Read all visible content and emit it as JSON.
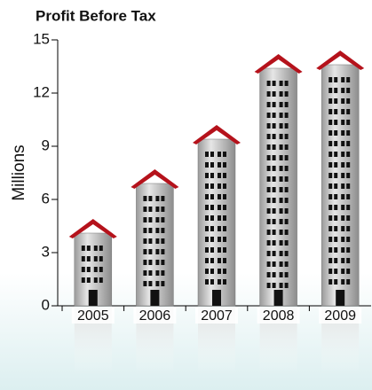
{
  "chart_data": {
    "type": "bar",
    "title": "Profit Before Tax",
    "y_label": "Millions",
    "categories": [
      "2005",
      "2006",
      "2007",
      "2008",
      "2009"
    ],
    "values": [
      4.1,
      6.9,
      9.4,
      13.4,
      13.6
    ],
    "color": "#c8c8c8",
    "roof_color": "#b5121b",
    "ylim": [
      0,
      15
    ],
    "yticks": [
      0,
      3,
      6,
      9,
      12,
      15
    ]
  }
}
